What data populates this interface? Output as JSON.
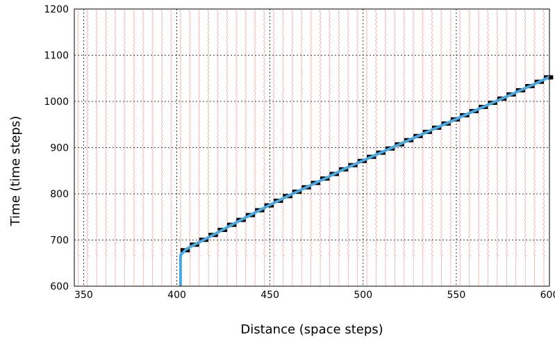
{
  "chart_data": {
    "type": "line",
    "xlabel": "Distance (space steps)",
    "ylabel": "Time (time steps)",
    "xlim": [
      345,
      600
    ],
    "ylim": [
      600,
      1200
    ],
    "xticks": [
      350,
      400,
      450,
      500,
      550,
      600
    ],
    "yticks": [
      600,
      700,
      800,
      900,
      1000,
      1100,
      1200
    ],
    "grid": true,
    "colors": {
      "fit_line": "#4aa8e0",
      "steps": "#000000",
      "background_lines": "#f2a0a0",
      "grid": "#000000"
    },
    "series": [
      {
        "x": [
          402,
          402,
          405,
          410,
          420,
          430,
          440,
          450,
          460,
          470,
          480,
          490,
          500,
          510,
          520,
          530,
          540,
          550,
          560,
          570,
          580,
          590,
          600
        ],
        "y": [
          600,
          667,
          680,
          691,
          712,
          734,
          755,
          776,
          796,
          815,
          834,
          854,
          872,
          890,
          908,
          926,
          944,
          962,
          980,
          998,
          1016,
          1034,
          1053
        ]
      }
    ]
  }
}
